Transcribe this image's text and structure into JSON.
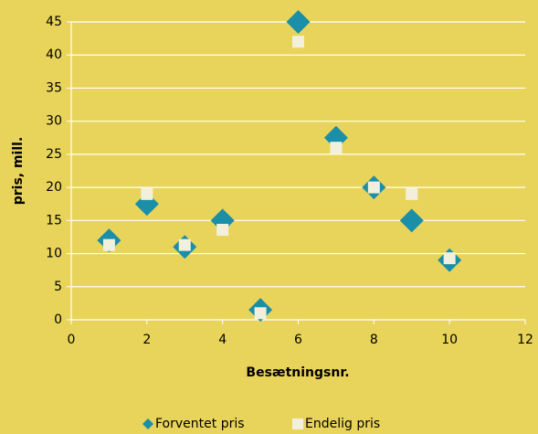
{
  "chart_data": {
    "type": "scatter",
    "xlabel": "Besætningsnr.",
    "ylabel": "pris, mill.",
    "xlim": [
      0,
      12
    ],
    "xticks": [
      0,
      2,
      4,
      6,
      8,
      10,
      12
    ],
    "ylim": [
      0,
      45
    ],
    "yticks": [
      0,
      5,
      10,
      15,
      20,
      25,
      30,
      35,
      40,
      45
    ],
    "grid": true,
    "legend": "bottom",
    "series": [
      {
        "name": "Forventet pris",
        "color": "#1b8ea8",
        "marker": "diamond",
        "x": [
          1,
          2,
          3,
          4,
          5,
          6,
          7,
          8,
          9,
          10
        ],
        "values": [
          12,
          17.5,
          11,
          15,
          1.5,
          45,
          27.5,
          20,
          15,
          9
        ]
      },
      {
        "name": "Endelig pris",
        "color": "#f2f0dc",
        "marker": "square",
        "x": [
          1,
          2,
          3,
          4,
          5,
          6,
          7,
          8,
          9,
          10
        ],
        "values": [
          11.3,
          19,
          11.3,
          13.6,
          1,
          42,
          26,
          20,
          19,
          9.3
        ]
      }
    ]
  }
}
